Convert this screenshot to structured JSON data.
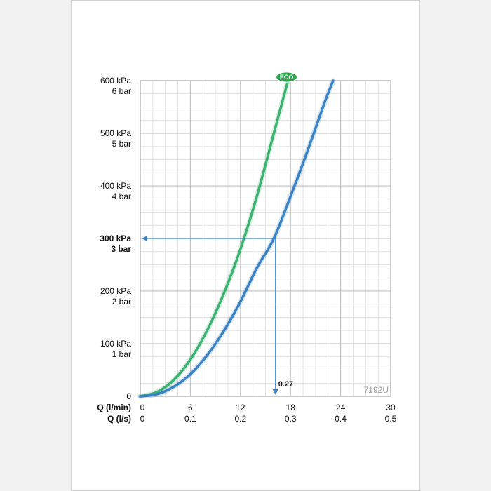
{
  "chart_data": {
    "type": "line",
    "x_axis": {
      "rows": [
        {
          "label": "Q (l/min)",
          "ticks": [
            "0",
            "6",
            "12",
            "18",
            "24",
            "30"
          ]
        },
        {
          "label": "Q (l/s)",
          "ticks": [
            "0",
            "0.1",
            "0.2",
            "0.3",
            "0.4",
            "0.5"
          ]
        }
      ],
      "range": [
        0,
        30
      ],
      "minor_step": 1.5
    },
    "y_axis": {
      "range": [
        0,
        600
      ],
      "minor_step": 25,
      "ticks": [
        {
          "value": 600,
          "kpa": "600 kPa",
          "bar": "6 bar",
          "bold": false
        },
        {
          "value": 500,
          "kpa": "500 kPa",
          "bar": "5 bar",
          "bold": false
        },
        {
          "value": 400,
          "kpa": "400 kPa",
          "bar": "4 bar",
          "bold": false
        },
        {
          "value": 300,
          "kpa": "300 kPa",
          "bar": "3 bar",
          "bold": true
        },
        {
          "value": 200,
          "kpa": "200 kPa",
          "bar": "2 bar",
          "bold": false
        },
        {
          "value": 100,
          "kpa": "100 kPa",
          "bar": "1 bar",
          "bold": false
        },
        {
          "value": 0,
          "kpa": "0",
          "bar": "",
          "bold": false
        }
      ]
    },
    "grid": true,
    "series": [
      {
        "name": "ECO",
        "color": "#3cb371",
        "x": [
          0,
          2,
          4,
          6,
          8,
          10,
          12,
          14,
          16,
          17.7
        ],
        "y": [
          0,
          8,
          31,
          70,
          125,
          195,
          280,
          382,
          500,
          600
        ]
      },
      {
        "name": "",
        "color": "#3a82c4",
        "x": [
          0,
          2,
          4,
          6,
          8,
          10,
          12,
          14,
          16,
          18,
          20,
          22,
          23.1
        ],
        "y": [
          0,
          4,
          18,
          42,
          78,
          124,
          180,
          245,
          300,
          380,
          465,
          555,
          600
        ]
      }
    ],
    "annotations": [
      {
        "type": "reading",
        "x": 16.2,
        "y": 300,
        "label": "0.27",
        "color": "#3a82c4"
      }
    ],
    "product_code": "7192U"
  }
}
